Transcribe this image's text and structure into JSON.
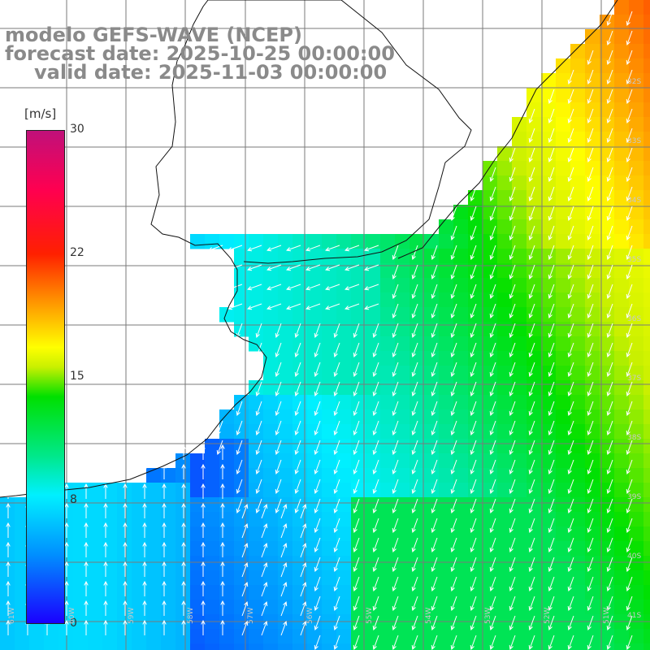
{
  "title": {
    "line1": "modelo GEFS-WAVE (NCEP)",
    "line2": "forecast date: 2025-10-25 00:00:00",
    "line3": "valid date: 2025-11-03 00:00:00"
  },
  "colorbar": {
    "unit": "[m/s]",
    "ticks": [
      "30",
      "22",
      "15",
      "8",
      "0"
    ],
    "tick_values": [
      30,
      22,
      15,
      8,
      0
    ],
    "colors": [
      "#1a00ff",
      "#0090ff",
      "#00f0ff",
      "#00e000",
      "#ffff00",
      "#ff8c00",
      "#ff2000",
      "#c0107a"
    ]
  },
  "map": {
    "lat_labels": [
      "32S",
      "33S",
      "34S",
      "35S",
      "36S",
      "37S",
      "38S",
      "39S",
      "40S",
      "41S"
    ],
    "lon_labels": [
      "61W",
      "60W",
      "59W",
      "58W",
      "57W",
      "56W",
      "55W",
      "54W",
      "53W",
      "52W",
      "51W"
    ],
    "wind_direction": "arrows point toward south-southwest offshore and northward near the southern coast"
  }
}
